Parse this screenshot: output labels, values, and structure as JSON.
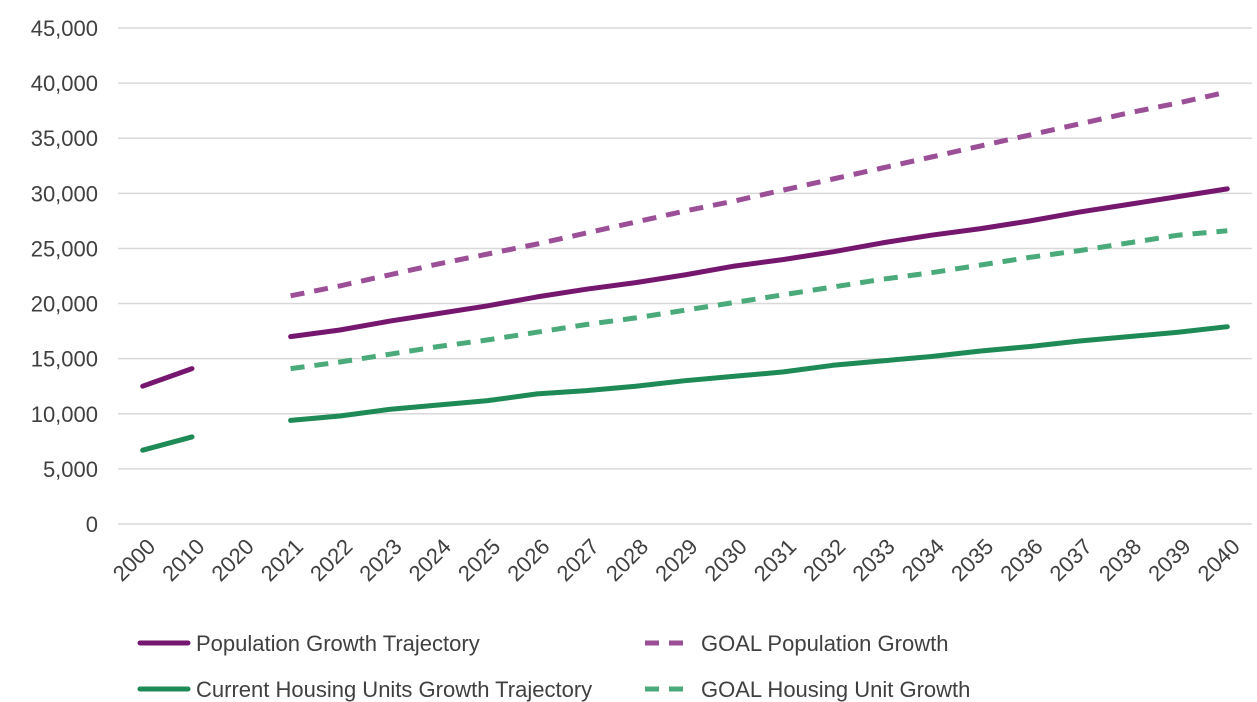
{
  "chart_data": {
    "type": "line",
    "title": "",
    "xlabel": "",
    "ylabel": "",
    "categories": [
      "2000",
      "2010",
      "2020",
      "2021",
      "2022",
      "2023",
      "2024",
      "2025",
      "2026",
      "2027",
      "2028",
      "2029",
      "2030",
      "2031",
      "2032",
      "2033",
      "2034",
      "2035",
      "2036",
      "2037",
      "2038",
      "2039",
      "2040"
    ],
    "ylim": [
      0,
      45000
    ],
    "yticks": [
      0,
      5000,
      10000,
      15000,
      20000,
      25000,
      30000,
      35000,
      40000,
      45000
    ],
    "ytick_labels": [
      "0",
      "5,000",
      "10,000",
      "15,000",
      "20,000",
      "25,000",
      "30,000",
      "35,000",
      "40,000",
      "45,000"
    ],
    "grid": true,
    "legend_position": "bottom",
    "series": [
      {
        "name": "Population Growth Trajectory",
        "color": "#76176f",
        "style": "solid",
        "values": [
          12500,
          14100,
          null,
          17000,
          17600,
          18400,
          19100,
          19800,
          20600,
          21300,
          21900,
          22600,
          23400,
          24000,
          24700,
          25500,
          26200,
          26800,
          27500,
          28300,
          29000,
          29700,
          30400
        ]
      },
      {
        "name": "GOAL Population Growth",
        "color": "#9b4f96",
        "style": "dashed",
        "values": [
          null,
          null,
          null,
          20700,
          21600,
          22600,
          23600,
          24500,
          25400,
          26400,
          27400,
          28400,
          29300,
          30300,
          31300,
          32300,
          33300,
          34300,
          35300,
          36300,
          37300,
          38200,
          39200
        ]
      },
      {
        "name": "Current Housing Units Growth Trajectory",
        "color": "#1e8a55",
        "style": "solid",
        "values": [
          6700,
          7900,
          null,
          9400,
          9800,
          10400,
          10800,
          11200,
          11800,
          12100,
          12500,
          13000,
          13400,
          13800,
          14400,
          14800,
          15200,
          15700,
          16100,
          16600,
          17000,
          17400,
          17900
        ]
      },
      {
        "name": "GOAL Housing Unit Growth",
        "color": "#4aaa7a",
        "style": "dashed",
        "values": [
          null,
          null,
          null,
          14100,
          14700,
          15400,
          16100,
          16700,
          17400,
          18100,
          18700,
          19400,
          20100,
          20800,
          21500,
          22200,
          22800,
          23500,
          24200,
          24800,
          25500,
          26200,
          26600
        ]
      }
    ]
  }
}
